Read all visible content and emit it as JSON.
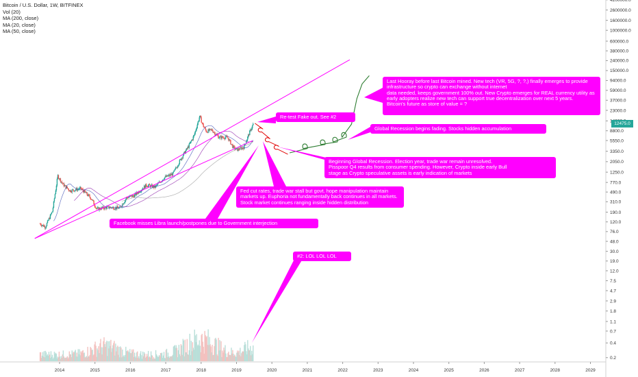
{
  "chart_data": {
    "type": "candlestick",
    "title": "Bitcoin / U.S. Dollar, 1W, BITFINEX",
    "indicators": [
      "Vol (20)",
      "MA (200, close)",
      "MA (20, close)",
      "MA (50, close)"
    ],
    "scale": "log",
    "y_ticks": [
      "4200000.0",
      "2600000.0",
      "1600000.0",
      "1000000.0",
      "600000.0",
      "380000.0",
      "240000.0",
      "150000.0",
      "94000.0",
      "59000.0",
      "37000.0",
      "23000.0",
      "14000.0",
      "8800.0",
      "5550.0",
      "3350.0",
      "2050.0",
      "1250.0",
      "770.0",
      "490.0",
      "310.0",
      "190.0",
      "120.0",
      "76.0",
      "48.0",
      "30.0",
      "19.0",
      "12.0",
      "7.5",
      "4.7",
      "2.9",
      "1.8",
      "1.1",
      "0.7",
      "0.4",
      "0.2"
    ],
    "x_ticks": [
      "2014",
      "2015",
      "2016",
      "2017",
      "2018",
      "2019",
      "2020",
      "2021",
      "2022",
      "2023",
      "2024",
      "2025",
      "2026",
      "2027",
      "2028",
      "2029"
    ],
    "last_price": "12475.0",
    "price_path": [
      {
        "year": 2013.45,
        "price": 110
      },
      {
        "year": 2013.6,
        "price": 95
      },
      {
        "year": 2013.8,
        "price": 200
      },
      {
        "year": 2013.95,
        "price": 1050
      },
      {
        "year": 2014.1,
        "price": 700
      },
      {
        "year": 2014.3,
        "price": 520
      },
      {
        "year": 2014.6,
        "price": 580
      },
      {
        "year": 2014.9,
        "price": 360
      },
      {
        "year": 2015.05,
        "price": 220
      },
      {
        "year": 2015.4,
        "price": 240
      },
      {
        "year": 2015.7,
        "price": 230
      },
      {
        "year": 2015.9,
        "price": 380
      },
      {
        "year": 2016.1,
        "price": 410
      },
      {
        "year": 2016.45,
        "price": 680
      },
      {
        "year": 2016.7,
        "price": 620
      },
      {
        "year": 2016.95,
        "price": 960
      },
      {
        "year": 2017.2,
        "price": 1150
      },
      {
        "year": 2017.45,
        "price": 2500
      },
      {
        "year": 2017.65,
        "price": 4300
      },
      {
        "year": 2017.8,
        "price": 7000
      },
      {
        "year": 2017.96,
        "price": 17500
      },
      {
        "year": 2018.05,
        "price": 11500
      },
      {
        "year": 2018.15,
        "price": 8500
      },
      {
        "year": 2018.3,
        "price": 9200
      },
      {
        "year": 2018.5,
        "price": 6500
      },
      {
        "year": 2018.75,
        "price": 6400
      },
      {
        "year": 2018.9,
        "price": 4100
      },
      {
        "year": 2019.0,
        "price": 3600
      },
      {
        "year": 2019.2,
        "price": 4000
      },
      {
        "year": 2019.35,
        "price": 7500
      },
      {
        "year": 2019.48,
        "price": 12500
      }
    ],
    "projection_red": [
      {
        "year": 2019.52,
        "price": 12500
      },
      {
        "year": 2019.75,
        "price": 9500
      },
      {
        "year": 2019.95,
        "price": 6000
      },
      {
        "year": 2020.2,
        "price": 4200
      },
      {
        "year": 2020.45,
        "price": 2900
      }
    ],
    "projection_green": [
      {
        "year": 2020.5,
        "price": 3100
      },
      {
        "year": 2021.0,
        "price": 3800
      },
      {
        "year": 2021.5,
        "price": 4600
      },
      {
        "year": 2021.85,
        "price": 5200
      },
      {
        "year": 2022.1,
        "price": 6500
      },
      {
        "year": 2022.25,
        "price": 12000
      },
      {
        "year": 2022.4,
        "price": 40000
      },
      {
        "year": 2022.55,
        "price": 80000
      },
      {
        "year": 2022.75,
        "price": 118000
      }
    ],
    "trendlines": [
      {
        "from": {
          "year": 2013.3,
          "price": 55
        },
        "to": {
          "year": 2022.2,
          "price": 250000
        }
      },
      {
        "from": {
          "year": 2013.3,
          "price": 55
        },
        "to": {
          "year": 2019.45,
          "price": 5500
        }
      }
    ]
  },
  "annotations": [
    {
      "id": "re-test",
      "text": "Re-test Fake out. See #2"
    },
    {
      "id": "last-hooray",
      "text": "Last Hooray before last Bitcoin mined. New tech (VR, 5G, ?, ?,) finally emerges to provide infrastructure so crypto can exchange without internet\n data needed, keeps government 100% out. New Crypto emerges for REAL currency utility as early adopters realize new tech can support true decentralization over next 5 years.\nBitcoin's future as store of value = ?"
    },
    {
      "id": "recession-fading",
      "text": "Global Recession begins fading. Stocks hidden accumulation"
    },
    {
      "id": "beginning-recession",
      "text": "Beginning Global Recession. Election year, trade war remain unresolved.\nPisspoor Q4 results from consumer spending. However, Crypto inside early Bull\nstage as Crypto speculative assets is early indication of markets"
    },
    {
      "id": "fed-cut",
      "text": "Fed cut rates, trade war stall but govt. hope manipulation maintain markets up. Euphoria not fundamentally back continues in all markets. Stock market continues ranging inside hidden distribution"
    },
    {
      "id": "facebook",
      "text": "Facebook misses Libra launch/postpones due to Government interjection"
    },
    {
      "id": "lol",
      "text": "#2: LOL LOL LOL"
    }
  ],
  "colors": {
    "accent": "#ff00ff",
    "up": "#26a69a",
    "down": "#ef5350",
    "projection_red": "#e00000",
    "projection_green": "#2e7d32"
  }
}
